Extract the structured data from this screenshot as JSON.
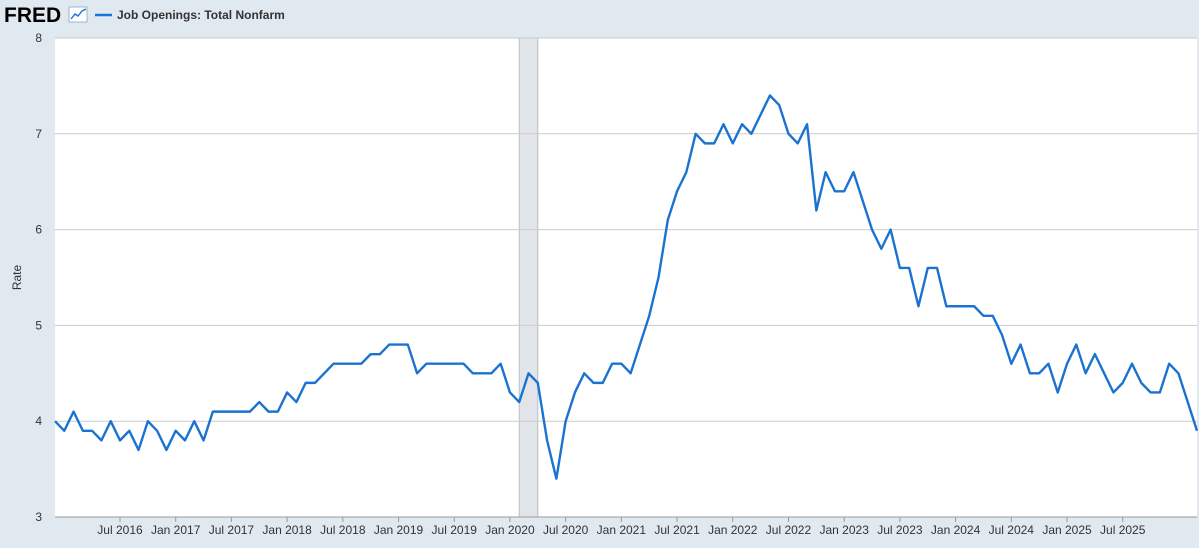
{
  "header": {
    "logo_text": "FRED",
    "logo_icon": "trend-line-icon",
    "legend_label": "Job Openings: Total Nonfarm"
  },
  "colors": {
    "series": "#1a73d0",
    "background": "#e1e9f0",
    "plot_background": "#ffffff",
    "recession": "#e1e5ea",
    "grid": "#cccccc"
  },
  "chart_data": {
    "type": "line",
    "title": "",
    "xlabel": "",
    "ylabel": "Rate",
    "ylim": [
      3,
      8
    ],
    "yticks": [
      "3",
      "4",
      "5",
      "6",
      "7",
      "8"
    ],
    "grid": true,
    "recession_shading": {
      "start": "2020-02",
      "end": "2020-04"
    },
    "xticks": [
      "Jul 2016",
      "Jan 2017",
      "Jul 2017",
      "Jan 2018",
      "Jul 2018",
      "Jan 2019",
      "Jul 2019",
      "Jan 2020",
      "Jul 2020",
      "Jan 2021",
      "Jul 2021",
      "Jan 2022",
      "Jul 2022",
      "Jan 2023",
      "Jul 2023",
      "Jan 2024",
      "Jul 2024",
      "Jan 2025",
      "Jul 2025"
    ],
    "series": [
      {
        "name": "Job Openings: Total Nonfarm",
        "start": "2015-12",
        "frequency": "monthly",
        "values": [
          4.0,
          3.9,
          4.1,
          3.9,
          3.9,
          3.8,
          4.0,
          3.8,
          3.9,
          3.7,
          4.0,
          3.9,
          3.7,
          3.9,
          3.8,
          4.0,
          3.8,
          4.1,
          4.1,
          4.1,
          4.1,
          4.1,
          4.2,
          4.1,
          4.1,
          4.3,
          4.2,
          4.4,
          4.4,
          4.5,
          4.6,
          4.6,
          4.6,
          4.6,
          4.7,
          4.7,
          4.8,
          4.8,
          4.8,
          4.5,
          4.6,
          4.6,
          4.6,
          4.6,
          4.6,
          4.5,
          4.5,
          4.5,
          4.6,
          4.3,
          4.2,
          4.5,
          4.4,
          3.8,
          3.4,
          4.0,
          4.3,
          4.5,
          4.4,
          4.4,
          4.6,
          4.6,
          4.5,
          4.8,
          5.1,
          5.5,
          6.1,
          6.4,
          6.6,
          7.0,
          6.9,
          6.9,
          7.1,
          6.9,
          7.1,
          7.0,
          7.2,
          7.4,
          7.3,
          7.0,
          6.9,
          7.1,
          6.2,
          6.6,
          6.4,
          6.4,
          6.6,
          6.3,
          6.0,
          5.8,
          6.0,
          5.6,
          5.6,
          5.2,
          5.6,
          5.6,
          5.2,
          5.2,
          5.2,
          5.2,
          5.1,
          5.1,
          4.9,
          4.6,
          4.8,
          4.5,
          4.5,
          4.6,
          4.3,
          4.6,
          4.8,
          4.5,
          4.7,
          4.5,
          4.3,
          4.4,
          4.6,
          4.4,
          4.3,
          4.3,
          4.6,
          4.5,
          4.2,
          3.9
        ]
      }
    ]
  }
}
